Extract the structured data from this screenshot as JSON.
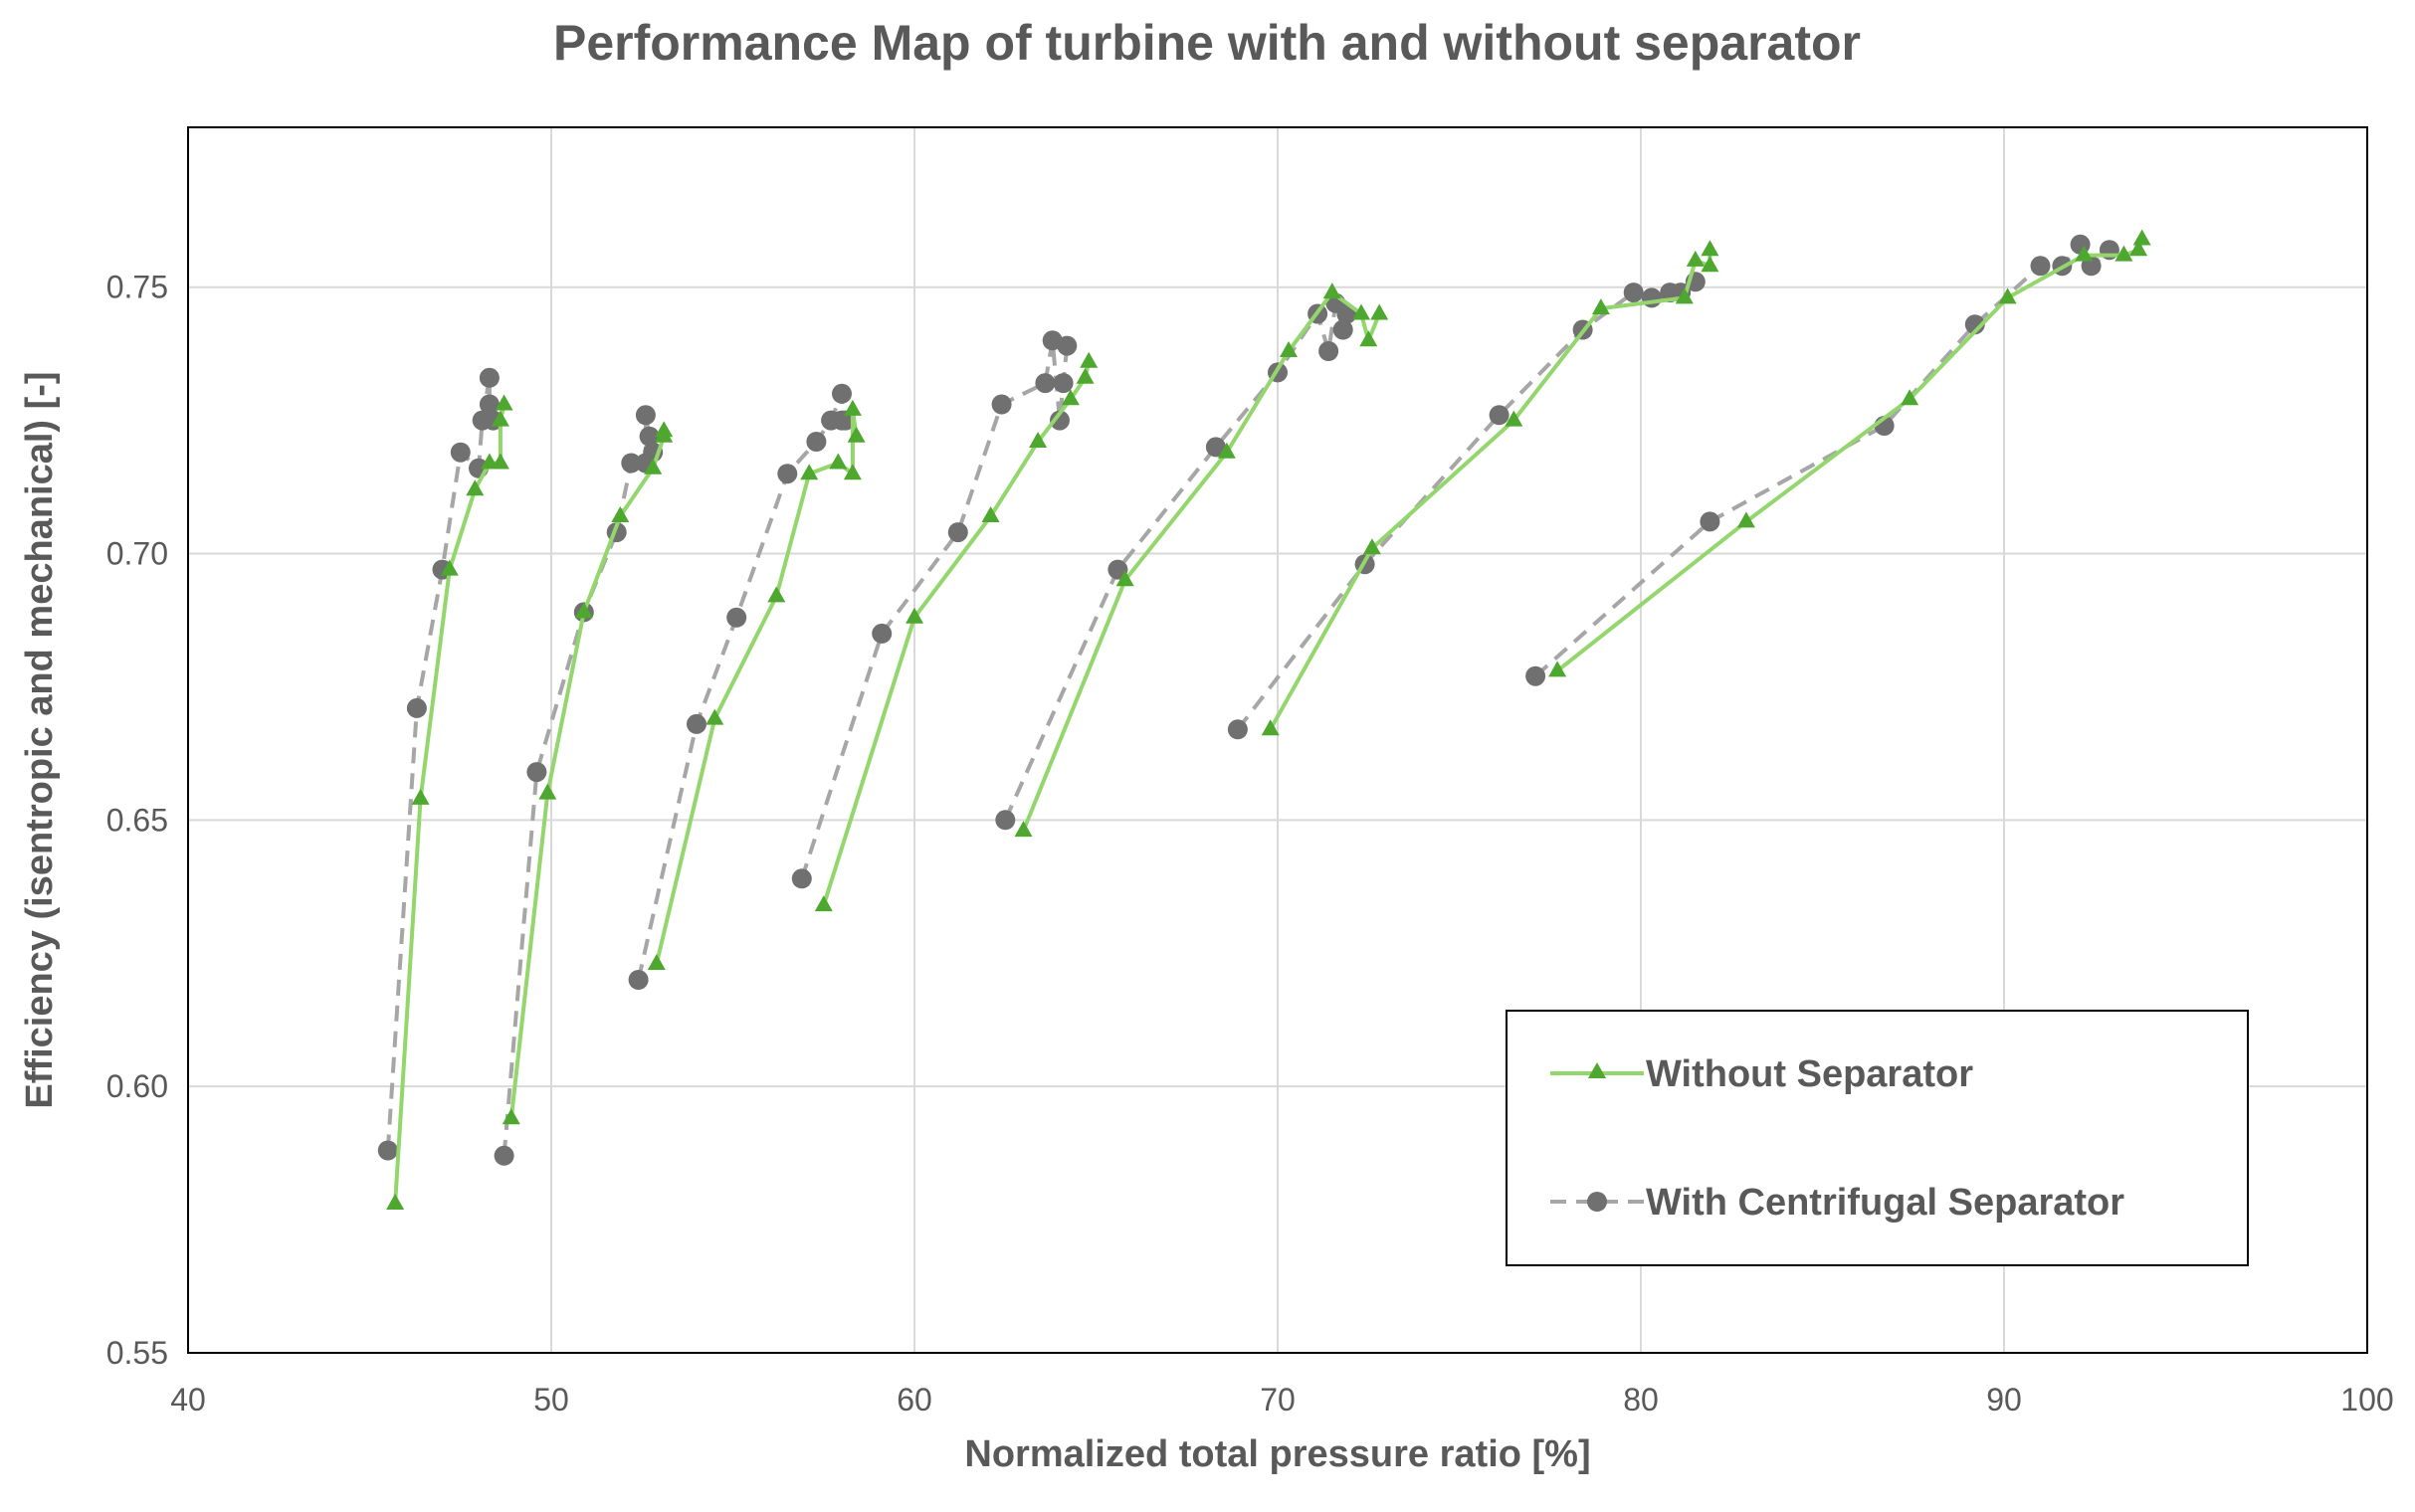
{
  "chart_data": {
    "type": "scatter",
    "title": "Performance Map of turbine with and without separator",
    "xlabel": "Normalized total pressure ratio [%]",
    "ylabel": "Efficiency (isentropic and mechanical) [-]",
    "xlim": [
      40,
      100
    ],
    "ylim": [
      0.55,
      0.78
    ],
    "xticks": [
      40,
      50,
      60,
      70,
      80,
      90,
      100
    ],
    "xtick_labels": [
      "40",
      "50",
      "60",
      "70",
      "80",
      "90",
      "100"
    ],
    "yticks": [
      0.55,
      0.6,
      0.65,
      0.7,
      0.75
    ],
    "ytick_labels": [
      "0.55",
      "0.60",
      "0.65",
      "0.70",
      "0.75"
    ],
    "grid": true,
    "legend_position": "bottom-right",
    "series": [
      {
        "name": "Without Separator",
        "color": "#92d66c",
        "marker_color": "#4ea72e",
        "marker": "triangle",
        "line_style": "solid",
        "speedlines": [
          [
            [
              45.7,
              0.578
            ],
            [
              46.4,
              0.654
            ],
            [
              47.2,
              0.697
            ],
            [
              47.9,
              0.712
            ],
            [
              48.3,
              0.717
            ],
            [
              48.6,
              0.717
            ],
            [
              48.6,
              0.725
            ],
            [
              48.7,
              0.728
            ]
          ],
          [
            [
              48.9,
              0.594
            ],
            [
              49.9,
              0.655
            ],
            [
              50.9,
              0.689
            ],
            [
              51.9,
              0.707
            ],
            [
              52.8,
              0.716
            ],
            [
              53.1,
              0.722
            ],
            [
              53.1,
              0.723
            ]
          ],
          [
            [
              52.9,
              0.623
            ],
            [
              54.5,
              0.669
            ],
            [
              56.2,
              0.692
            ],
            [
              57.1,
              0.715
            ],
            [
              57.9,
              0.717
            ],
            [
              58.3,
              0.715
            ],
            [
              58.3,
              0.727
            ],
            [
              58.4,
              0.722
            ]
          ],
          [
            [
              57.5,
              0.634
            ],
            [
              60.0,
              0.688
            ],
            [
              62.1,
              0.707
            ],
            [
              63.4,
              0.721
            ],
            [
              64.3,
              0.729
            ],
            [
              64.7,
              0.733
            ],
            [
              64.8,
              0.736
            ]
          ],
          [
            [
              63.0,
              0.648
            ],
            [
              65.8,
              0.695
            ],
            [
              68.6,
              0.719
            ],
            [
              70.3,
              0.738
            ],
            [
              71.5,
              0.749
            ],
            [
              72.3,
              0.745
            ],
            [
              72.5,
              0.74
            ],
            [
              72.8,
              0.745
            ]
          ],
          [
            [
              69.8,
              0.667
            ],
            [
              72.6,
              0.701
            ],
            [
              76.5,
              0.725
            ],
            [
              78.9,
              0.746
            ],
            [
              81.2,
              0.748
            ],
            [
              81.5,
              0.755
            ],
            [
              81.9,
              0.754
            ],
            [
              81.9,
              0.757
            ]
          ],
          [
            [
              77.7,
              0.678
            ],
            [
              82.9,
              0.706
            ],
            [
              87.4,
              0.729
            ],
            [
              90.1,
              0.748
            ],
            [
              92.2,
              0.756
            ],
            [
              93.3,
              0.756
            ],
            [
              93.7,
              0.757
            ],
            [
              93.8,
              0.759
            ]
          ]
        ]
      },
      {
        "name": "With Centrifugal Separator",
        "color": "#a6a6a6",
        "marker_color": "#707070",
        "marker": "circle",
        "line_style": "dashed",
        "speedlines": [
          [
            [
              45.5,
              0.588
            ],
            [
              46.3,
              0.671
            ],
            [
              47.0,
              0.697
            ],
            [
              47.5,
              0.719
            ],
            [
              48.0,
              0.716
            ],
            [
              48.1,
              0.725
            ],
            [
              48.3,
              0.733
            ],
            [
              48.3,
              0.728
            ],
            [
              48.4,
              0.725
            ]
          ],
          [
            [
              48.7,
              0.587
            ],
            [
              49.6,
              0.659
            ],
            [
              50.9,
              0.689
            ],
            [
              51.8,
              0.704
            ],
            [
              52.2,
              0.717
            ],
            [
              52.6,
              0.717
            ],
            [
              52.6,
              0.726
            ],
            [
              52.7,
              0.722
            ],
            [
              52.8,
              0.719
            ]
          ],
          [
            [
              52.4,
              0.62
            ],
            [
              54.0,
              0.668
            ],
            [
              55.1,
              0.688
            ],
            [
              56.5,
              0.715
            ],
            [
              57.3,
              0.721
            ],
            [
              57.7,
              0.725
            ],
            [
              58.0,
              0.73
            ],
            [
              58.0,
              0.725
            ],
            [
              58.1,
              0.725
            ]
          ],
          [
            [
              56.9,
              0.639
            ],
            [
              59.1,
              0.685
            ],
            [
              61.2,
              0.704
            ],
            [
              62.4,
              0.728
            ],
            [
              63.6,
              0.732
            ],
            [
              63.8,
              0.74
            ],
            [
              64.0,
              0.725
            ],
            [
              64.1,
              0.732
            ],
            [
              64.2,
              0.739
            ]
          ],
          [
            [
              62.5,
              0.65
            ],
            [
              65.6,
              0.697
            ],
            [
              68.3,
              0.72
            ],
            [
              70.0,
              0.734
            ],
            [
              71.1,
              0.745
            ],
            [
              71.4,
              0.738
            ],
            [
              71.6,
              0.747
            ],
            [
              71.8,
              0.742
            ],
            [
              71.9,
              0.745
            ]
          ],
          [
            [
              68.9,
              0.667
            ],
            [
              72.4,
              0.698
            ],
            [
              76.1,
              0.726
            ],
            [
              78.4,
              0.742
            ],
            [
              79.8,
              0.749
            ],
            [
              80.3,
              0.748
            ],
            [
              80.8,
              0.749
            ],
            [
              81.1,
              0.749
            ],
            [
              81.5,
              0.751
            ]
          ],
          [
            [
              77.1,
              0.677
            ],
            [
              81.9,
              0.706
            ],
            [
              86.7,
              0.724
            ],
            [
              89.2,
              0.743
            ],
            [
              91.0,
              0.754
            ],
            [
              91.6,
              0.754
            ],
            [
              92.1,
              0.758
            ],
            [
              92.4,
              0.754
            ],
            [
              92.9,
              0.757
            ]
          ]
        ]
      }
    ]
  }
}
